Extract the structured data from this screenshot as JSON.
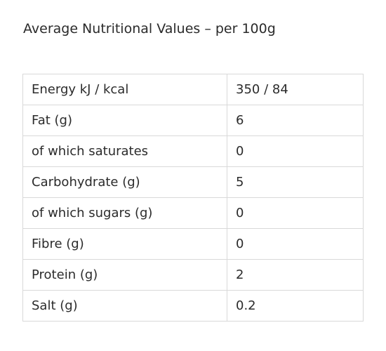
{
  "heading": "Average Nutritional Values – per 100g",
  "table": {
    "rows": [
      {
        "label": "Energy kJ / kcal",
        "value": "350 / 84"
      },
      {
        "label": "Fat (g)",
        "value": "6"
      },
      {
        "label": "of which saturates",
        "value": "0"
      },
      {
        "label": "Carbohydrate (g)",
        "value": "5"
      },
      {
        "label": "of which sugars (g)",
        "value": "0"
      },
      {
        "label": "Fibre (g)",
        "value": "0"
      },
      {
        "label": "Protein (g)",
        "value": "2"
      },
      {
        "label": "Salt (g)",
        "value": "0.2"
      }
    ]
  }
}
